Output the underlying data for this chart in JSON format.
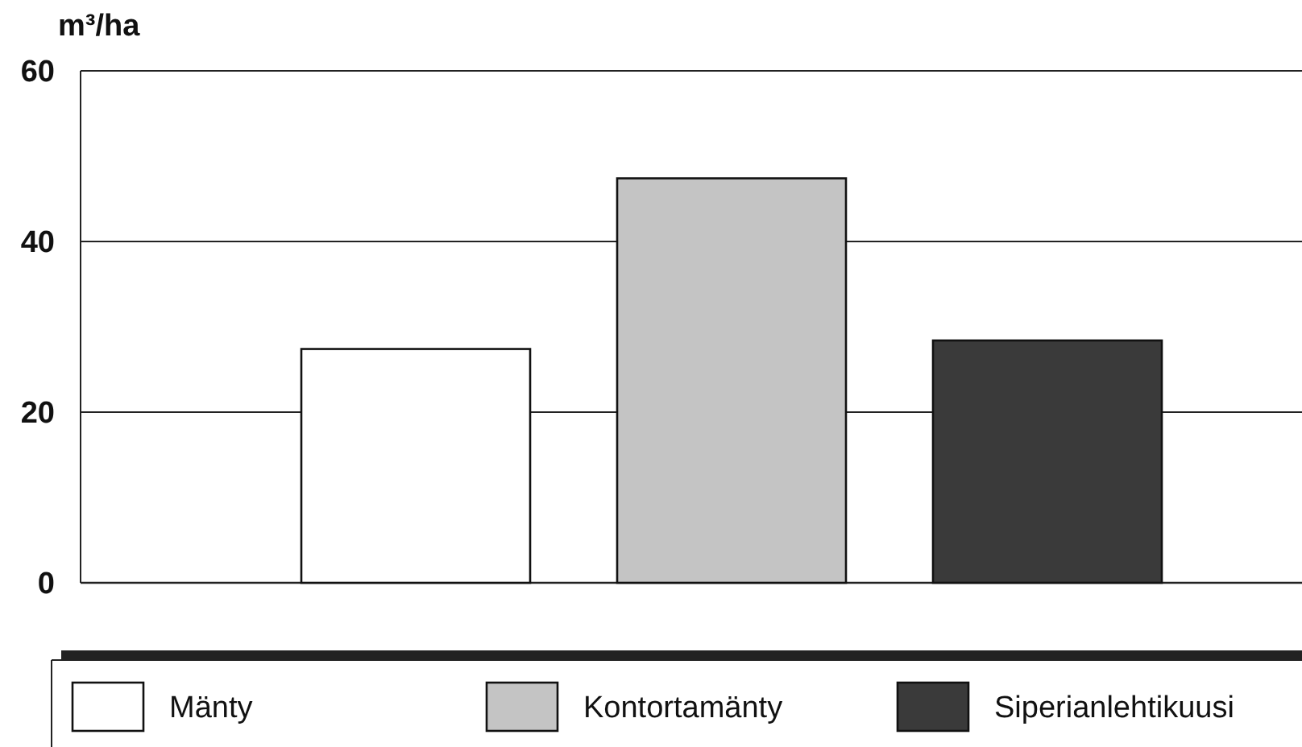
{
  "chart_data": {
    "type": "bar",
    "ylabel": "m³/ha",
    "categories": [
      null
    ],
    "series": [
      {
        "name": "Mänty",
        "color": "#ffffff",
        "values": [
          27.4
        ]
      },
      {
        "name": "Kontortamänty",
        "color": "#c4c4c4",
        "values": [
          47.4
        ]
      },
      {
        "name": "Siperianlehtikuusi",
        "color": "#3a3a3a",
        "values": [
          28.4
        ]
      }
    ],
    "ylim": [
      0,
      60
    ],
    "yticks": [
      0,
      20,
      40,
      60
    ],
    "grid": "y",
    "legend": "bottom"
  }
}
